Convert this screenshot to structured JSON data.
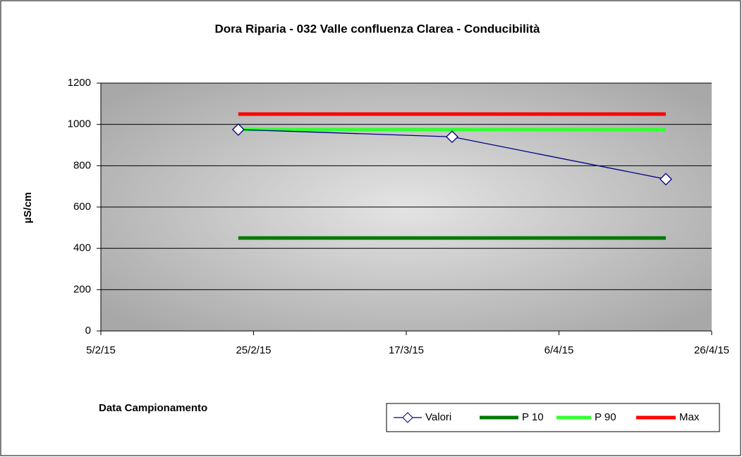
{
  "chart_data": {
    "type": "line",
    "title": "Dora Riparia - 032 Valle confluenza Clarea - Conducibilità",
    "x_label": "Data Campionamento",
    "y_label": "µS/cm",
    "x": [
      "23/2/15",
      "23/3/15",
      "20/4/15"
    ],
    "xlim": [
      "5/2/15",
      "26/4/15"
    ],
    "xticks": [
      "5/2/15",
      "25/2/15",
      "17/3/15",
      "6/4/15",
      "26/4/15"
    ],
    "ylim": [
      0,
      1200
    ],
    "yticks": [
      0,
      200,
      400,
      600,
      800,
      1000,
      1200
    ],
    "grid": true,
    "legend": "bottom-right",
    "series": [
      {
        "name": "Valori",
        "color": "#000080",
        "values": [
          975,
          940,
          735
        ]
      },
      {
        "name": "P 10",
        "color": "#007a00",
        "values": [
          450,
          450,
          450
        ]
      },
      {
        "name": "P 90",
        "color": "#33ff33",
        "values": [
          975,
          975,
          975
        ]
      },
      {
        "name": "Max",
        "color": "#ff0000",
        "values": [
          1050,
          1050,
          1050
        ]
      }
    ]
  }
}
